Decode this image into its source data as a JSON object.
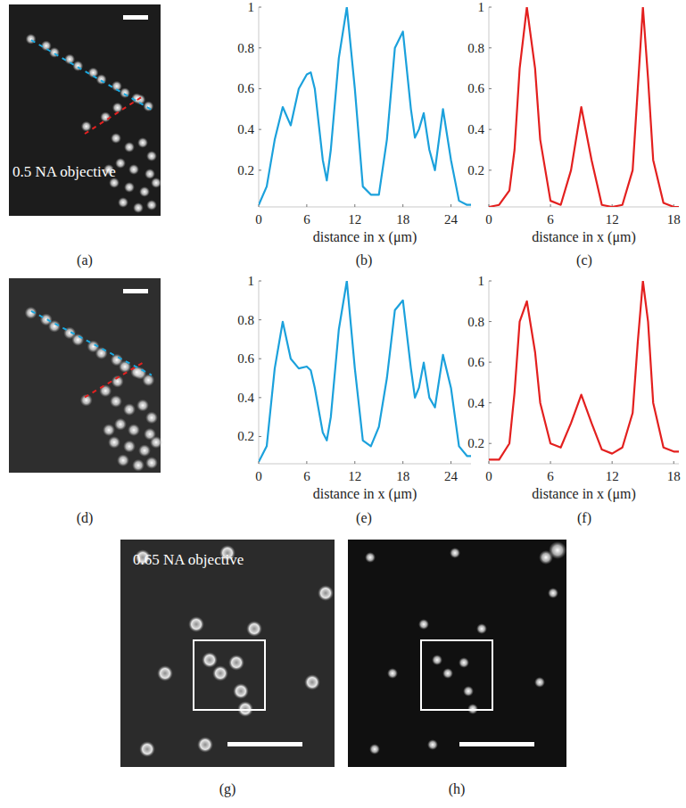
{
  "chart_data": [
    {
      "type": "line",
      "panel_label": "(b)",
      "x_label": "distance in x (μm)",
      "color": "#1ba1dc",
      "x": [
        0,
        1,
        2,
        3,
        4,
        5,
        6,
        6.5,
        7,
        8,
        8.5,
        9,
        10,
        11,
        12,
        13,
        14,
        15,
        16,
        17,
        18,
        19,
        19.5,
        20,
        20.6,
        21.3,
        22,
        23,
        24,
        25,
        26,
        26.5
      ],
      "values": [
        0.03,
        0.12,
        0.35,
        0.51,
        0.42,
        0.6,
        0.67,
        0.68,
        0.6,
        0.25,
        0.15,
        0.3,
        0.75,
        1.0,
        0.6,
        0.12,
        0.08,
        0.08,
        0.35,
        0.8,
        0.88,
        0.5,
        0.36,
        0.4,
        0.48,
        0.3,
        0.2,
        0.5,
        0.25,
        0.05,
        0.03,
        0.03
      ],
      "xlim": [
        0,
        26.5
      ],
      "ylim": [
        0.02,
        1
      ],
      "xticks": [
        0,
        6,
        12,
        18,
        24
      ],
      "yticks": [
        0.2,
        0.4,
        0.6,
        0.8,
        1
      ],
      "grid": false
    },
    {
      "type": "line",
      "panel_label": "(c)",
      "x_label": "distance in x (μm)",
      "color": "#e3201f",
      "x": [
        0,
        1,
        2,
        2.5,
        3,
        3.7,
        4.5,
        5,
        6,
        7,
        8,
        9,
        10,
        11,
        12,
        13,
        14,
        14.5,
        15,
        15.5,
        16,
        17,
        18,
        18.5
      ],
      "values": [
        0.02,
        0.03,
        0.1,
        0.3,
        0.7,
        1.0,
        0.7,
        0.35,
        0.05,
        0.03,
        0.2,
        0.51,
        0.25,
        0.03,
        0.02,
        0.03,
        0.2,
        0.6,
        1.0,
        0.65,
        0.25,
        0.04,
        0.02,
        0.02
      ],
      "xlim": [
        0,
        18.5
      ],
      "ylim": [
        0.02,
        1
      ],
      "xticks": [
        0,
        6,
        12,
        18
      ],
      "yticks": [
        0.2,
        0.4,
        0.6,
        0.8,
        1
      ],
      "grid": false
    },
    {
      "type": "line",
      "panel_label": "(e)",
      "x_label": "distance in x (μm)",
      "color": "#1ba1dc",
      "x": [
        0,
        1,
        2,
        3,
        4,
        5,
        6,
        6.5,
        7,
        8,
        8.5,
        9,
        10,
        11,
        12,
        13,
        14,
        15,
        16,
        17,
        18,
        19,
        19.5,
        20,
        20.6,
        21.3,
        22,
        23,
        24,
        25,
        26,
        26.5
      ],
      "values": [
        0.07,
        0.15,
        0.55,
        0.79,
        0.6,
        0.55,
        0.56,
        0.54,
        0.45,
        0.22,
        0.18,
        0.3,
        0.75,
        1.0,
        0.55,
        0.18,
        0.15,
        0.25,
        0.5,
        0.85,
        0.9,
        0.55,
        0.4,
        0.45,
        0.58,
        0.4,
        0.35,
        0.62,
        0.45,
        0.15,
        0.1,
        0.1
      ],
      "xlim": [
        0,
        26.5
      ],
      "ylim": [
        0.06,
        1
      ],
      "xticks": [
        0,
        6,
        12,
        18,
        24
      ],
      "yticks": [
        0.2,
        0.4,
        0.6,
        0.8,
        1
      ],
      "grid": false
    },
    {
      "type": "line",
      "panel_label": "(f)",
      "x_label": "distance in x (μm)",
      "color": "#e3201f",
      "x": [
        0,
        1,
        2,
        2.5,
        3,
        3.7,
        4.5,
        5,
        6,
        7,
        8,
        9,
        10,
        11,
        12,
        13,
        14,
        14.5,
        15,
        15.5,
        16,
        17,
        18,
        18.5
      ],
      "values": [
        0.12,
        0.12,
        0.2,
        0.45,
        0.8,
        0.9,
        0.65,
        0.4,
        0.2,
        0.18,
        0.3,
        0.44,
        0.3,
        0.17,
        0.15,
        0.18,
        0.35,
        0.7,
        1.0,
        0.8,
        0.4,
        0.18,
        0.16,
        0.16
      ],
      "xlim": [
        0,
        18.5
      ],
      "ylim": [
        0.1,
        1
      ],
      "xticks": [
        0,
        6,
        12,
        18
      ],
      "yticks": [
        0.2,
        0.4,
        0.6,
        0.8,
        1
      ],
      "grid": false
    }
  ],
  "images": [
    {
      "panel_label": "(a)",
      "text": "0.5 NA objective"
    },
    {
      "panel_label": "(d)"
    },
    {
      "panel_label": "(g)",
      "text": "0.65 NA objective"
    },
    {
      "panel_label": "(h)"
    }
  ]
}
